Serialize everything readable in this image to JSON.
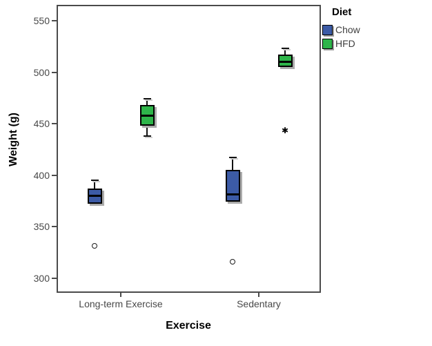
{
  "figure": {
    "background": "#ffffff",
    "frame_color": "#4a4a4a",
    "text_gray": "#484848"
  },
  "chart_data": {
    "type": "boxplot",
    "title": "",
    "xlabel": "Exercise",
    "ylabel": "Weight (g)",
    "categories": [
      "Long-term Exercise",
      "Sedentary"
    ],
    "yticks": [
      300,
      350,
      400,
      450,
      500,
      550
    ],
    "ylim": [
      287,
      563
    ],
    "grid": false,
    "legend": {
      "title": "Diet",
      "position": "top-right-outside",
      "entries": [
        {
          "label": "Chow",
          "color": "#3c5ba6"
        },
        {
          "label": "HFD",
          "color": "#2eb54a"
        }
      ]
    },
    "series": [
      {
        "name": "Chow",
        "color": "#3c5ba6",
        "boxes": [
          {
            "category": "Long-term Exercise",
            "whisker_high": 395,
            "q3": 387,
            "median": 380,
            "q1": 372,
            "whisker_low": null,
            "outliers": [
              331
            ],
            "extremes": []
          },
          {
            "category": "Sedentary",
            "whisker_high": 417,
            "q3": 405,
            "median": 381,
            "q1": 374,
            "whisker_low": null,
            "outliers": [
              316
            ],
            "extremes": []
          }
        ]
      },
      {
        "name": "HFD",
        "color": "#2eb54a",
        "boxes": [
          {
            "category": "Long-term Exercise",
            "whisker_high": 474,
            "q3": 468,
            "median": 458,
            "q1": 448,
            "whisker_low": 438,
            "outliers": [],
            "extremes": []
          },
          {
            "category": "Sedentary",
            "whisker_high": 523,
            "q3": 517,
            "median": 510,
            "q1": 505,
            "whisker_low": null,
            "outliers": [],
            "extremes": [
              443
            ]
          }
        ]
      }
    ],
    "markers": {
      "outlier": "circle",
      "extreme": "asterisk",
      "extreme_glyph": "✱"
    }
  }
}
